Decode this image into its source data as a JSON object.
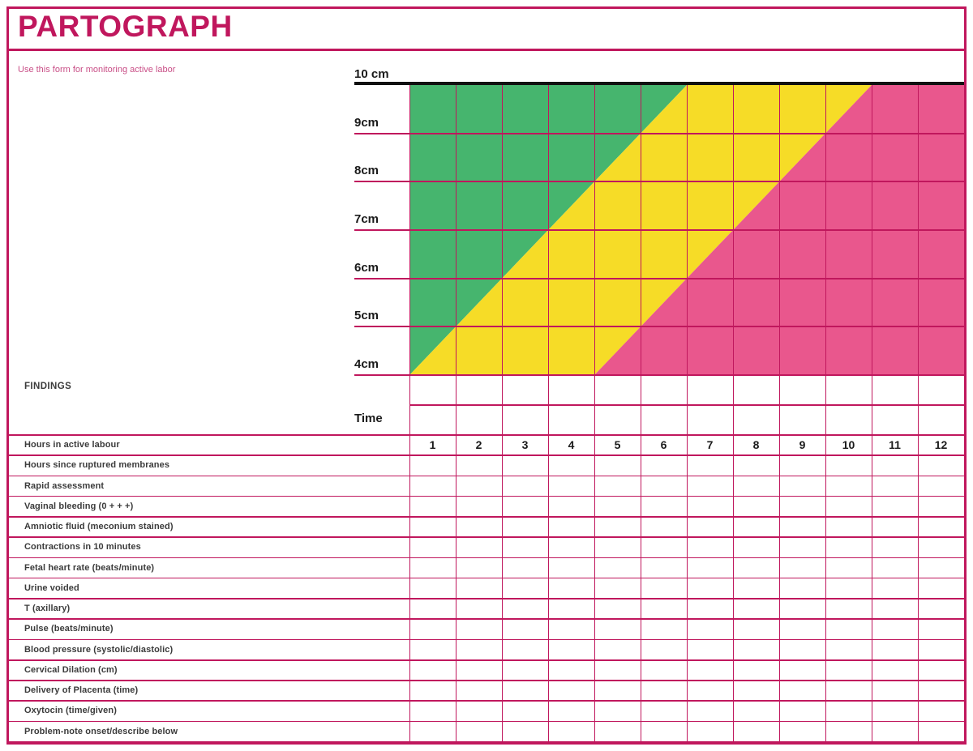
{
  "title": "PARTOGRAPH",
  "subtitle": "Use this form for monitoring active labor",
  "colors": {
    "magenta": "#C0175D",
    "pinkZone": "#E9578D",
    "greenZone": "#46B56E",
    "yellowZone": "#F6DC27",
    "labelText": "#3B3B3B",
    "black": "#1A1A1A",
    "subtitleText": "#C94F87"
  },
  "chart": {
    "findings_label": "FINDINGS",
    "time_label": "Time",
    "dilation_labels": [
      "10 cm",
      "9cm",
      "8cm",
      "7cm",
      "6cm",
      "5cm",
      "4cm"
    ],
    "hour_numbers": [
      "1",
      "2",
      "3",
      "4",
      "5",
      "6",
      "7",
      "8",
      "9",
      "10",
      "11",
      "12"
    ],
    "dilation_range_cm": [
      4,
      10
    ],
    "hours_range": [
      0,
      12
    ],
    "alert_line": {
      "from_hour": 0,
      "to_hour": 6
    },
    "action_line": {
      "from_hour": 4,
      "to_hour": 10
    },
    "zones": [
      {
        "name": "normal-progress",
        "color_key": "greenZone"
      },
      {
        "name": "alert",
        "color_key": "yellowZone"
      },
      {
        "name": "action",
        "color_key": "pinkZone"
      }
    ]
  },
  "rows": [
    "Hours in active labour",
    "Hours since ruptured membranes",
    "Rapid assessment",
    "Vaginal bleeding (0 + + +)",
    "Amniotic fluid (meconium stained)",
    "Contractions in 10 minutes",
    "Fetal heart rate (beats/minute)",
    "Urine voided",
    "T (axillary)",
    "Pulse (beats/minute)",
    "Blood pressure (systolic/diastolic)",
    "Cervical Dilation (cm)",
    "Delivery of Placenta (time)",
    "Oxytocin (time/given)",
    "Problem-note onset/describe below"
  ]
}
